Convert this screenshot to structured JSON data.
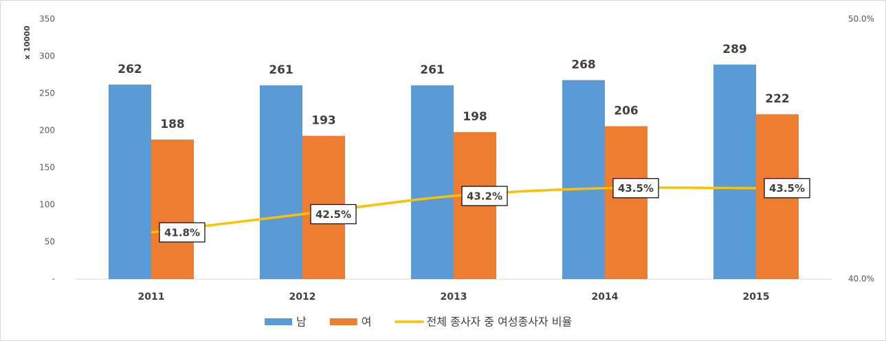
{
  "chart_data": {
    "type": "bar",
    "y_axis_label": "x 10000",
    "categories": [
      "2011",
      "2012",
      "2013",
      "2014",
      "2015"
    ],
    "series": [
      {
        "name": "남",
        "color": "#5b9bd5",
        "values": [
          262,
          261,
          261,
          268,
          289
        ]
      },
      {
        "name": "여",
        "color": "#ed7d31",
        "values": [
          188,
          193,
          198,
          206,
          222
        ]
      },
      {
        "name": "전체 종사자 중 여성종사자 비율",
        "color": "#ffc000",
        "type": "line",
        "axis": "y2",
        "values": [
          41.8,
          42.5,
          43.2,
          43.5,
          43.5
        ],
        "value_labels": [
          "41.8%",
          "42.5%",
          "43.2%",
          "43.5%",
          "43.5%"
        ]
      }
    ],
    "ylim": [
      0,
      350
    ],
    "yticks": [
      {
        "value": 0,
        "label": "-"
      },
      50,
      100,
      150,
      200,
      250,
      300,
      350
    ],
    "y2lim": [
      40,
      50
    ],
    "y2ticks": [
      {
        "value": 40,
        "label": "40.0%"
      },
      {
        "value": 50,
        "label": "50.0%"
      }
    ],
    "legend": "bottom"
  }
}
